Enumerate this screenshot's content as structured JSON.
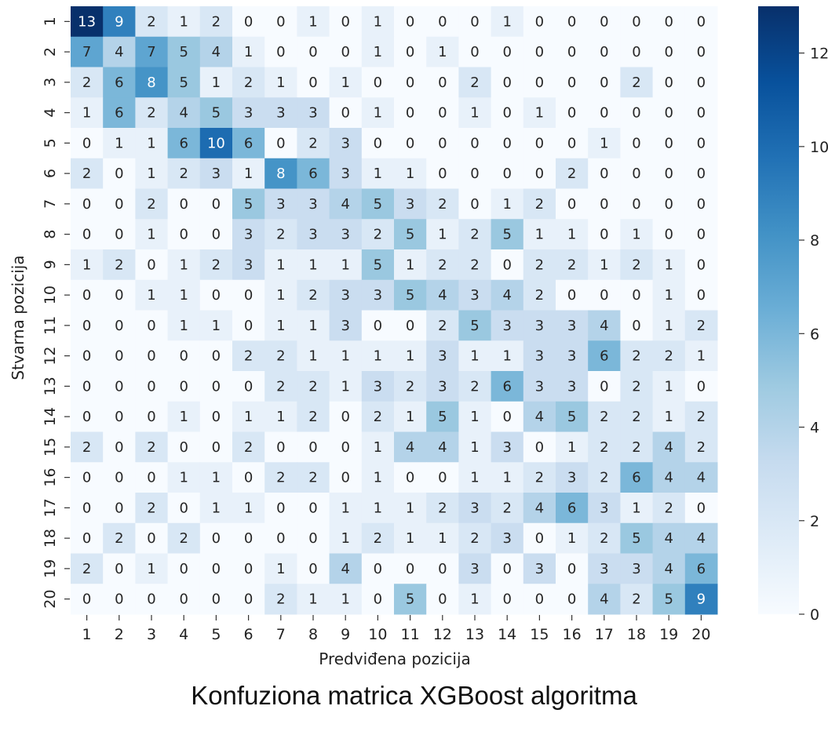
{
  "chart_data": {
    "type": "heatmap",
    "title": "",
    "xlabel": "Predviđena pozicija",
    "ylabel": "Stvarna pozicija",
    "x_categories": [
      "1",
      "2",
      "3",
      "4",
      "5",
      "6",
      "7",
      "8",
      "9",
      "10",
      "11",
      "12",
      "13",
      "14",
      "15",
      "16",
      "17",
      "18",
      "19",
      "20"
    ],
    "y_categories": [
      "1",
      "2",
      "3",
      "4",
      "5",
      "6",
      "7",
      "8",
      "9",
      "10",
      "11",
      "12",
      "13",
      "14",
      "15",
      "16",
      "17",
      "18",
      "19",
      "20"
    ],
    "values": [
      [
        13,
        9,
        2,
        1,
        2,
        0,
        0,
        1,
        0,
        1,
        0,
        0,
        0,
        1,
        0,
        0,
        0,
        0,
        0,
        0
      ],
      [
        7,
        4,
        7,
        5,
        4,
        1,
        0,
        0,
        0,
        1,
        0,
        1,
        0,
        0,
        0,
        0,
        0,
        0,
        0,
        0
      ],
      [
        2,
        6,
        8,
        5,
        1,
        2,
        1,
        0,
        1,
        0,
        0,
        0,
        2,
        0,
        0,
        0,
        0,
        2,
        0,
        0
      ],
      [
        1,
        6,
        2,
        4,
        5,
        3,
        3,
        3,
        0,
        1,
        0,
        0,
        1,
        0,
        1,
        0,
        0,
        0,
        0,
        0
      ],
      [
        0,
        1,
        1,
        6,
        10,
        6,
        0,
        2,
        3,
        0,
        0,
        0,
        0,
        0,
        0,
        0,
        1,
        0,
        0,
        0
      ],
      [
        2,
        0,
        1,
        2,
        3,
        1,
        8,
        6,
        3,
        1,
        1,
        0,
        0,
        0,
        0,
        2,
        0,
        0,
        0,
        0
      ],
      [
        0,
        0,
        2,
        0,
        0,
        5,
        3,
        3,
        4,
        5,
        3,
        2,
        0,
        1,
        2,
        0,
        0,
        0,
        0,
        0
      ],
      [
        0,
        0,
        1,
        0,
        0,
        3,
        2,
        3,
        3,
        2,
        5,
        1,
        2,
        5,
        1,
        1,
        0,
        1,
        0,
        0
      ],
      [
        1,
        2,
        0,
        1,
        2,
        3,
        1,
        1,
        1,
        5,
        1,
        2,
        2,
        0,
        2,
        2,
        1,
        2,
        1,
        0
      ],
      [
        0,
        0,
        1,
        1,
        0,
        0,
        1,
        2,
        3,
        3,
        5,
        4,
        3,
        4,
        2,
        0,
        0,
        0,
        1,
        0
      ],
      [
        0,
        0,
        0,
        1,
        1,
        0,
        1,
        1,
        3,
        0,
        0,
        2,
        5,
        3,
        3,
        3,
        4,
        0,
        1,
        2
      ],
      [
        0,
        0,
        0,
        0,
        0,
        2,
        2,
        1,
        1,
        1,
        1,
        3,
        1,
        1,
        3,
        3,
        6,
        2,
        2,
        1
      ],
      [
        0,
        0,
        0,
        0,
        0,
        0,
        2,
        2,
        1,
        3,
        2,
        3,
        2,
        6,
        3,
        3,
        0,
        2,
        1,
        0
      ],
      [
        0,
        0,
        0,
        1,
        0,
        1,
        1,
        2,
        0,
        2,
        1,
        5,
        1,
        0,
        4,
        5,
        2,
        2,
        1,
        2
      ],
      [
        2,
        0,
        2,
        0,
        0,
        2,
        0,
        0,
        0,
        1,
        4,
        4,
        1,
        3,
        0,
        1,
        2,
        2,
        4,
        2
      ],
      [
        0,
        0,
        0,
        1,
        1,
        0,
        2,
        2,
        0,
        1,
        0,
        0,
        1,
        1,
        2,
        3,
        2,
        6,
        4,
        4
      ],
      [
        0,
        0,
        2,
        0,
        1,
        1,
        0,
        0,
        1,
        1,
        1,
        2,
        3,
        2,
        4,
        6,
        3,
        1,
        2,
        0
      ],
      [
        0,
        2,
        0,
        2,
        0,
        0,
        0,
        0,
        1,
        2,
        1,
        1,
        2,
        3,
        0,
        1,
        2,
        5,
        4,
        4
      ],
      [
        2,
        0,
        1,
        0,
        0,
        0,
        1,
        0,
        4,
        0,
        0,
        0,
        3,
        0,
        3,
        0,
        3,
        3,
        4,
        6
      ],
      [
        0,
        0,
        0,
        0,
        0,
        0,
        2,
        1,
        1,
        0,
        5,
        0,
        1,
        0,
        0,
        0,
        4,
        2,
        5,
        9
      ]
    ],
    "vmin": 0,
    "vmax": 13,
    "colormap": "Blues",
    "colorbar_ticks": [
      0,
      2,
      4,
      6,
      8,
      10,
      12
    ]
  },
  "caption": "Konfuziona matrica XGBoost algoritma",
  "colors": {
    "low": "#f7fbff",
    "high": "#08306b",
    "text_dark": "#262626",
    "text_light": "#ffffff"
  }
}
